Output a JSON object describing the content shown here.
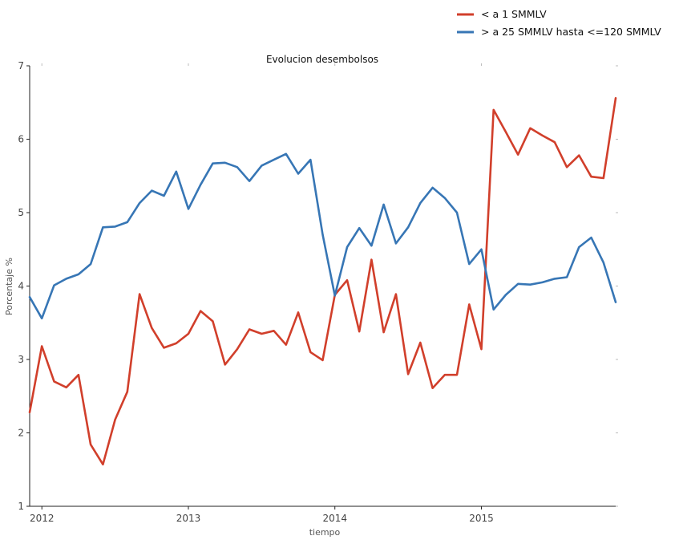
{
  "chart_data": {
    "type": "line",
    "title": "Evolucion desembolsos",
    "xlabel": "tiempo",
    "ylabel": "Porcentaje %",
    "ylim": [
      1,
      7
    ],
    "xlim": [
      "2011-12",
      "2015-12"
    ],
    "y_ticks": [
      "1",
      "2",
      "3",
      "4",
      "5",
      "6",
      "7"
    ],
    "x_ticks": [
      {
        "label": "2012",
        "date": "2012-01"
      },
      {
        "label": "2013",
        "date": "2013-01"
      },
      {
        "label": "2014",
        "date": "2014-01"
      },
      {
        "label": "2015",
        "date": "2015-01"
      }
    ],
    "grid": false,
    "legend_position": "top-right",
    "x": [
      "2011-12",
      "2012-01",
      "2012-02",
      "2012-03",
      "2012-04",
      "2012-05",
      "2012-06",
      "2012-07",
      "2012-08",
      "2012-09",
      "2012-10",
      "2012-11",
      "2012-12",
      "2013-01",
      "2013-02",
      "2013-03",
      "2013-04",
      "2013-05",
      "2013-06",
      "2013-07",
      "2013-08",
      "2013-09",
      "2013-10",
      "2013-11",
      "2013-12",
      "2014-01",
      "2014-02",
      "2014-03",
      "2014-04",
      "2014-05",
      "2014-06",
      "2014-07",
      "2014-08",
      "2014-09",
      "2014-10",
      "2014-11",
      "2014-12",
      "2015-01",
      "2015-02",
      "2015-03",
      "2015-04",
      "2015-05",
      "2015-06",
      "2015-07",
      "2015-08",
      "2015-09",
      "2015-10",
      "2015-11",
      "2015-12"
    ],
    "series": [
      {
        "name": "< a 1 SMMLV",
        "color": "#d13f2b",
        "values": [
          2.28,
          3.18,
          2.7,
          2.62,
          2.79,
          1.84,
          1.57,
          2.18,
          2.56,
          3.89,
          3.43,
          3.16,
          3.22,
          3.35,
          3.66,
          3.52,
          2.93,
          3.14,
          3.41,
          3.35,
          3.39,
          3.2,
          3.64,
          3.1,
          2.99,
          3.88,
          4.08,
          3.38,
          4.36,
          3.37,
          3.89,
          2.8,
          3.23,
          2.61,
          2.79,
          2.79,
          3.75,
          3.14,
          6.4,
          6.1,
          5.79,
          6.15,
          6.05,
          5.96,
          5.62,
          5.78,
          5.49,
          5.47,
          6.56
        ]
      },
      {
        "name": "> a 25 SMMLV hasta <=120 SMMLV",
        "color": "#3776b5",
        "values": [
          3.85,
          3.56,
          4.01,
          4.1,
          4.16,
          4.3,
          4.8,
          4.81,
          4.87,
          5.13,
          5.3,
          5.23,
          5.56,
          5.05,
          5.38,
          5.67,
          5.68,
          5.62,
          5.43,
          5.64,
          5.72,
          5.8,
          5.53,
          5.72,
          4.7,
          3.87,
          4.53,
          4.79,
          4.55,
          5.11,
          4.58,
          4.8,
          5.13,
          5.34,
          5.2,
          5.0,
          4.3,
          4.5,
          3.68,
          3.88,
          4.03,
          4.02,
          4.05,
          4.1,
          4.12,
          4.53,
          4.66,
          4.32,
          3.78
        ]
      }
    ]
  }
}
